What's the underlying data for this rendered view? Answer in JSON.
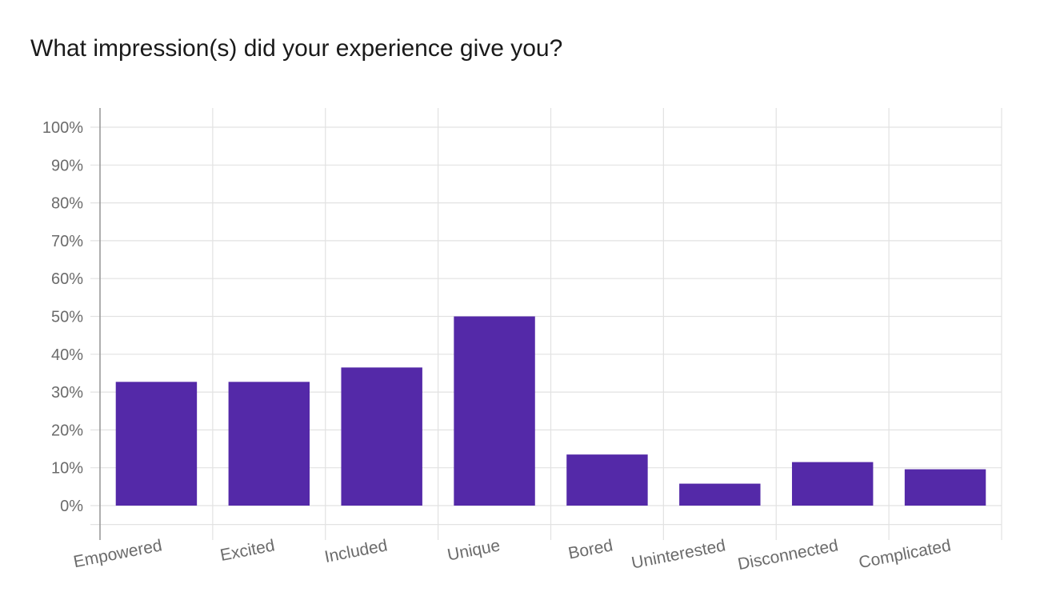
{
  "chart_data": {
    "type": "bar",
    "title": "What impression(s) did your experience give you?",
    "categories": [
      "Empowered",
      "Excited",
      "Included",
      "Unique",
      "Bored",
      "Uninterested",
      "Disconnected",
      "Complicated"
    ],
    "values": [
      32.7,
      32.7,
      36.5,
      50.0,
      13.5,
      5.8,
      11.5,
      9.6
    ],
    "value_unit": "%",
    "ylim": [
      0,
      100
    ],
    "yticks": [
      "0%",
      "10%",
      "20%",
      "30%",
      "40%",
      "50%",
      "60%",
      "70%",
      "80%",
      "90%",
      "100%"
    ],
    "grid": true,
    "bar_color": "#5429a8",
    "xlabel": "",
    "ylabel": ""
  }
}
